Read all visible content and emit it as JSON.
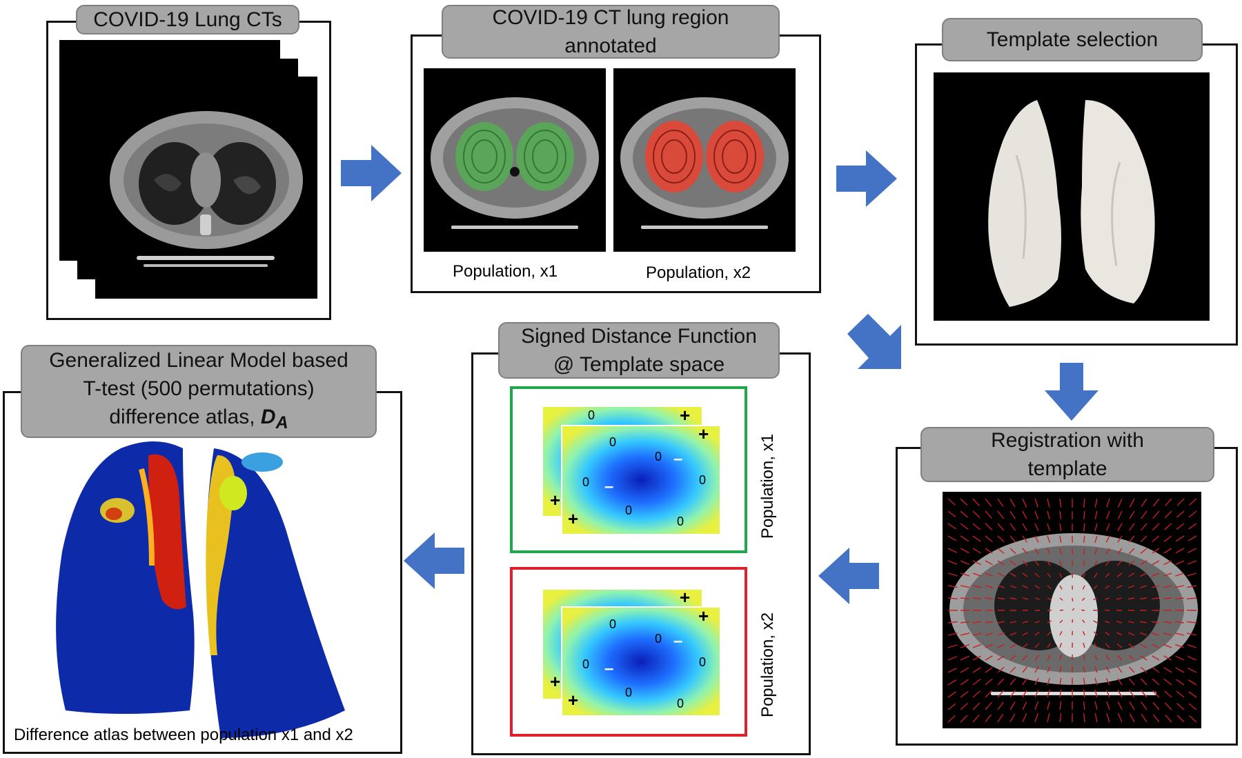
{
  "panels": {
    "ct": {
      "title": "COVID-19 Lung CTs"
    },
    "annotated": {
      "title_line1": "COVID-19 CT lung region",
      "title_line2": "annotated",
      "caption_left": "Population, x1",
      "caption_right": "Population, x2"
    },
    "template": {
      "title": "Template selection"
    },
    "registration": {
      "title_line1": "Registration with",
      "title_line2": "template"
    },
    "sdf": {
      "title_line1": "Signed Distance Function",
      "title_line2": "@ Template space",
      "label_x1": "Population, x1",
      "label_x2": "Population, x2",
      "marker_plus": "+",
      "marker_minus": "–",
      "marker_zero": "0"
    },
    "glm": {
      "title_line1": "Generalized Linear Model based",
      "title_line2": "T-test (500 permutations)",
      "title_line3_prefix": "difference atlas, ",
      "title_symbol": "D",
      "title_subscript": "A",
      "caption": "Difference atlas between population x1 and x2"
    }
  },
  "colors": {
    "arrow": "#4472c4",
    "tag_fill": "#a6a6a6",
    "x1_frame": "#1ea84a",
    "x2_frame": "#e0202a",
    "annot_green": "#5aa55a",
    "annot_red": "#d94a3a"
  },
  "icons": [
    "arrow-right-icon",
    "arrow-down-right-icon",
    "arrow-down-icon",
    "arrow-left-icon"
  ]
}
